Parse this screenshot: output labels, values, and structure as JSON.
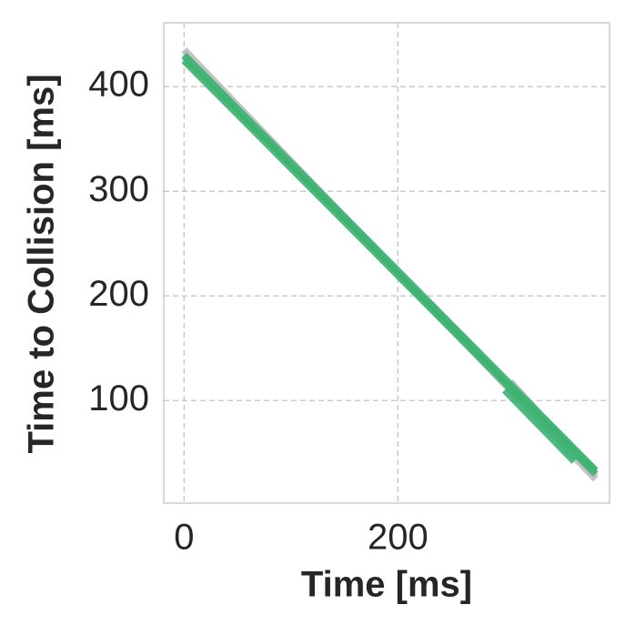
{
  "chart_data": {
    "type": "line",
    "xlabel": "Time [ms]",
    "ylabel": "Time to Collision [ms]",
    "xlim": [
      -19,
      398
    ],
    "ylim": [
      2,
      461
    ],
    "xticks": [
      0,
      200
    ],
    "yticks": [
      100,
      200,
      300,
      400
    ],
    "grid": true,
    "series": [
      {
        "color": "#bdbdbd",
        "x": [
          0,
          385
        ],
        "values": [
          435,
          25
        ]
      },
      {
        "color": "#c2c2c2",
        "x": [
          0,
          385
        ],
        "values": [
          428,
          33
        ]
      },
      {
        "color": "#bdbdbd",
        "x": [
          305,
          385
        ],
        "values": [
          118,
          28
        ]
      },
      {
        "color": "#3cb371",
        "x": [
          0,
          385
        ],
        "values": [
          430,
          33
        ]
      },
      {
        "color": "#3cb371",
        "x": [
          0,
          385
        ],
        "values": [
          425,
          30
        ]
      },
      {
        "color": "#3cb371",
        "x": [
          300,
          365
        ],
        "values": [
          110,
          42
        ]
      }
    ]
  }
}
